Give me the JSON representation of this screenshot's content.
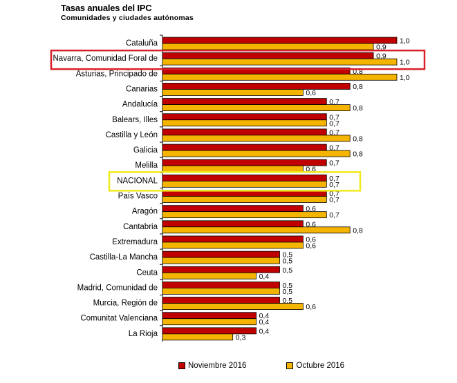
{
  "header": {
    "title": "Tasas anuales del IPC",
    "subtitle": "Comunidades y ciudades autónomas"
  },
  "colors": {
    "noviembre": "#c00000",
    "octubre": "#f5b400",
    "highlight_red": "#d9202a",
    "highlight_yellow": "#f0ea1a"
  },
  "legend": {
    "noviembre_label": "Noviembre 2016",
    "octubre_label": "Octubre 2016"
  },
  "chart_data": {
    "type": "bar",
    "orientation": "horizontal",
    "title": "Tasas anuales del IPC",
    "subtitle": "Comunidades y ciudades autónomas",
    "categories": [
      "Cataluña",
      "Navarra, Comunidad Foral de",
      "Asturias, Principado de",
      "Canarias",
      "Andalucía",
      "Balears, Illes",
      "Castilla y León",
      "Galicia",
      "Melilla",
      "NACIONAL",
      "País Vasco",
      "Aragón",
      "Cantabria",
      "Extremadura",
      "Castilla-La Mancha",
      "Ceuta",
      "Madrid, Comunidad de",
      "Murcia, Región de",
      "Comunitat Valenciana",
      "La Rioja"
    ],
    "series": [
      {
        "name": "Noviembre 2016",
        "values": [
          1.0,
          0.9,
          0.8,
          0.8,
          0.7,
          0.7,
          0.7,
          0.7,
          0.7,
          0.7,
          0.7,
          0.6,
          0.6,
          0.6,
          0.5,
          0.5,
          0.5,
          0.5,
          0.4,
          0.4
        ]
      },
      {
        "name": "Octubre 2016",
        "values": [
          0.9,
          1.0,
          1.0,
          0.6,
          0.8,
          0.7,
          0.8,
          0.8,
          0.6,
          0.7,
          0.7,
          0.7,
          0.8,
          0.6,
          0.5,
          0.4,
          0.5,
          0.6,
          0.4,
          0.3
        ]
      }
    ],
    "value_labels": [
      [
        "1,0",
        "0,9"
      ],
      [
        "0,9",
        "1,0"
      ],
      [
        "0,8",
        "1,0"
      ],
      [
        "0,8",
        "0,6"
      ],
      [
        "0,7",
        "0,8"
      ],
      [
        "0,7",
        "0,7"
      ],
      [
        "0,7",
        "0,8"
      ],
      [
        "0,7",
        "0,8"
      ],
      [
        "0,7",
        "0,6"
      ],
      [
        "0,7",
        "0,7"
      ],
      [
        "0,7",
        "0,7"
      ],
      [
        "0,6",
        "0,7"
      ],
      [
        "0,6",
        "0,8"
      ],
      [
        "0,6",
        "0,6"
      ],
      [
        "0,5",
        "0,5"
      ],
      [
        "0,5",
        "0,4"
      ],
      [
        "0,5",
        "0,5"
      ],
      [
        "0,5",
        "0,6"
      ],
      [
        "0,4",
        "0,4"
      ],
      [
        "0,4",
        "0,3"
      ]
    ],
    "highlighted": {
      "red_box": "Navarra, Comunidad Foral de",
      "yellow_box": "NACIONAL"
    },
    "xlim": [
      0,
      1.0
    ],
    "grid": false,
    "legend_position": "bottom"
  }
}
